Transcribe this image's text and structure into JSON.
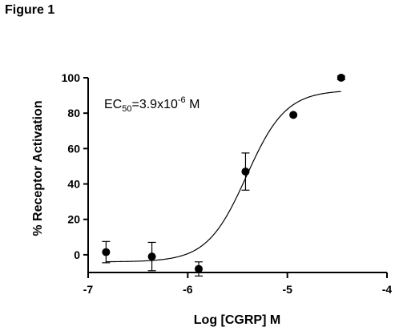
{
  "figure_title": "Figure 1",
  "chart_data": {
    "type": "scatter",
    "xlabel": "Log [CGRP] M",
    "ylabel": "% Receptor Activation",
    "xlim": [
      -7,
      -4
    ],
    "ylim": [
      -10,
      100
    ],
    "xticks": [
      -7,
      -6,
      -5,
      -4
    ],
    "xtick_labels": [
      "-7",
      "-6",
      "-5",
      "-4"
    ],
    "yticks": [
      0,
      20,
      40,
      60,
      80,
      100
    ],
    "ytick_labels": [
      "0",
      "20",
      "40",
      "60",
      "80",
      "100"
    ],
    "annotation": {
      "prefix": "EC",
      "sub": "50",
      "mid": "=3.9x10",
      "sup": "-6",
      "suffix": " M"
    },
    "points": [
      {
        "x": -6.82,
        "y": 1.5,
        "err": 6
      },
      {
        "x": -6.36,
        "y": -1,
        "err": 8
      },
      {
        "x": -5.89,
        "y": -8,
        "err": 4
      },
      {
        "x": -5.42,
        "y": 47,
        "err": 10.5
      },
      {
        "x": -4.94,
        "y": 79,
        "err": 0
      },
      {
        "x": -4.46,
        "y": 100,
        "err": 1
      }
    ],
    "fit": {
      "bottom": -4,
      "top": 93,
      "logEC50": -5.41,
      "hill": 2.2,
      "x_start": -6.82,
      "x_end": -4.46
    },
    "grid": false
  }
}
